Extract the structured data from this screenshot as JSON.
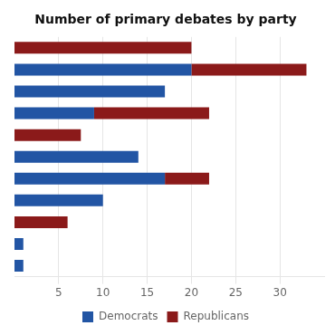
{
  "chart_data": {
    "type": "bar",
    "title": "Number of primary debates by party",
    "orientation": "horizontal",
    "stacked": true,
    "categories": [
      null,
      null,
      null,
      null,
      null,
      null,
      null,
      null,
      null,
      null,
      null
    ],
    "series": [
      {
        "name": "Democrats",
        "color": "#2255A4",
        "values": [
          0,
          20,
          17,
          9,
          0,
          14,
          17,
          10,
          0,
          1,
          1
        ]
      },
      {
        "name": "Republicans",
        "color": "#8B1A1A",
        "values": [
          20,
          13,
          0,
          13,
          7.5,
          0,
          5,
          0,
          6,
          0,
          0
        ]
      }
    ],
    "xlim": [
      0,
      35
    ],
    "xticks": [
      5,
      10,
      15,
      20,
      25,
      30
    ],
    "grid": true,
    "legend": "bottom",
    "tick_labels": "x"
  }
}
